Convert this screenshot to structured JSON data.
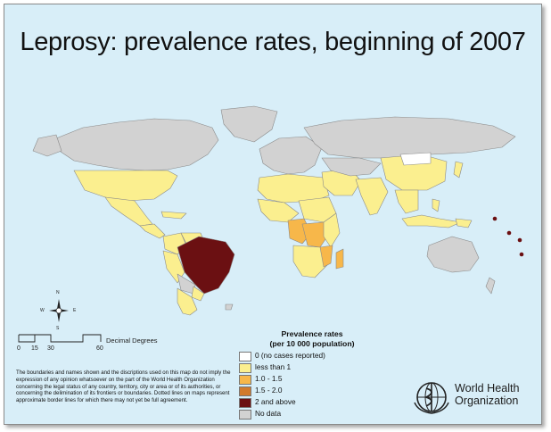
{
  "title": "Leprosy: prevalence rates, beginning of 2007",
  "legend": {
    "title_line1": "Prevalence rates",
    "title_line2": "(per 10 000 population)",
    "items": [
      {
        "label": "0 (no cases reported)",
        "color": "#ffffff"
      },
      {
        "label": "less than 1",
        "color": "#fbef8f"
      },
      {
        "label": "1.0 - 1.5",
        "color": "#f7b74a"
      },
      {
        "label": "1.5 - 2.0",
        "color": "#d17a2c"
      },
      {
        "label": "2 and above",
        "color": "#6b1012"
      },
      {
        "label": "No data",
        "color": "#d2d2d2"
      }
    ]
  },
  "scale": {
    "unit": "Decimal Degrees",
    "ticks": [
      "0",
      "15",
      "30",
      "60"
    ]
  },
  "compass": {
    "n": "N",
    "s": "S",
    "e": "E",
    "w": "W"
  },
  "disclaimer": "The boundaries and names shown and the discriptions used on this map do not imply the expression of any opinion whatsoever on the part of the World Health Organization concerning the legal status of any country, territory, city or area or of its authorities, or concerning the delimination of its frontiers or boundaries. Dotted lines on maps represent approximate border lines for which there may not yet be full agreement.",
  "organization": {
    "line1": "World Health",
    "line2": "Organization"
  },
  "colors": {
    "ocean": "#d8eef8",
    "low": "#fbef8f",
    "mid": "#f7b74a",
    "high": "#6b1012",
    "none": "#ffffff",
    "nodata": "#d2d2d2"
  }
}
